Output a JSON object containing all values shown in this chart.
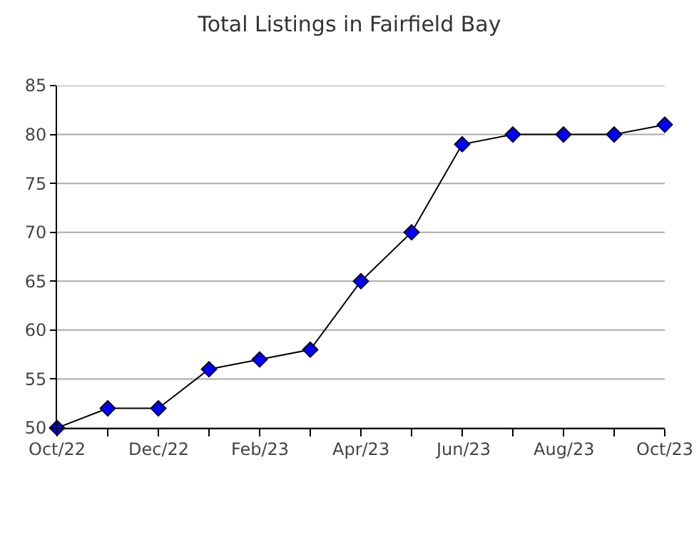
{
  "chart_data": {
    "type": "line",
    "title": "Total Listings in Fairfield Bay",
    "categories": [
      "Oct/22",
      null,
      "Dec/22",
      null,
      "Feb/23",
      null,
      "Apr/23",
      null,
      "Jun/23",
      null,
      "Aug/23",
      null,
      "Oct/23"
    ],
    "series": [
      {
        "color": "#0000ff",
        "values": [
          50,
          52,
          52,
          56,
          57,
          58,
          65,
          70,
          79,
          80,
          80,
          80,
          81
        ]
      }
    ],
    "ylim": [
      50,
      85
    ],
    "yticks": [
      50,
      55,
      60,
      65,
      70,
      75,
      80,
      85
    ],
    "grid": "y",
    "marker": "diamond",
    "line_style": "solid"
  }
}
